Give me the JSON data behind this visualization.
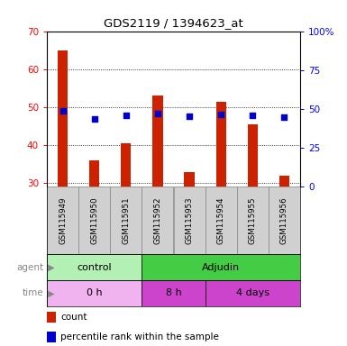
{
  "title": "GDS2119 / 1394623_at",
  "samples": [
    "GSM115949",
    "GSM115950",
    "GSM115951",
    "GSM115952",
    "GSM115953",
    "GSM115954",
    "GSM115955",
    "GSM115956"
  ],
  "count_values": [
    65,
    36,
    40.5,
    53,
    33,
    51.5,
    45.5,
    32
  ],
  "count_base": 29,
  "percentile_values": [
    49,
    43.5,
    46,
    47,
    45.5,
    46.5,
    46,
    45
  ],
  "ylim_left": [
    29,
    70
  ],
  "ylim_right": [
    0,
    100
  ],
  "yticks_left": [
    30,
    40,
    50,
    60,
    70
  ],
  "yticks_right": [
    0,
    25,
    50,
    75,
    100
  ],
  "yticklabels_right": [
    "0",
    "25",
    "50",
    "75",
    "100%"
  ],
  "bar_color": "#cc2200",
  "dot_color": "#0000cc",
  "agent_row": [
    {
      "label": "control",
      "start": 0,
      "end": 3,
      "color": "#b3f0b3"
    },
    {
      "label": "Adjudin",
      "start": 3,
      "end": 8,
      "color": "#44cc44"
    }
  ],
  "time_row": [
    {
      "label": "0 h",
      "start": 0,
      "end": 3,
      "color": "#f0b3f0"
    },
    {
      "label": "8 h",
      "start": 3,
      "end": 5,
      "color": "#cc44cc"
    },
    {
      "label": "4 days",
      "start": 5,
      "end": 8,
      "color": "#cc44cc"
    }
  ],
  "legend_count_color": "#cc2200",
  "legend_dot_color": "#0000cc",
  "legend_count_label": "count",
  "legend_dot_label": "percentile rank within the sample"
}
